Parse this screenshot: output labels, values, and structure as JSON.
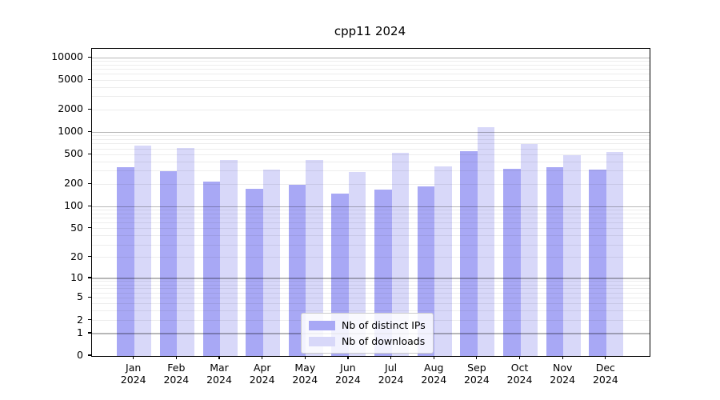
{
  "title": "cpp11 2024",
  "legend": {
    "items": [
      {
        "label": "Nb of distinct IPs",
        "color": "#a8a8f5"
      },
      {
        "label": "Nb of downloads",
        "color": "#d8d8f9"
      }
    ]
  },
  "axes": {
    "y_tick_labels": [
      "0",
      "1",
      "2",
      "5",
      "10",
      "20",
      "50",
      "100",
      "200",
      "500",
      "1000",
      "2000",
      "5000",
      "10000"
    ],
    "x_tick_year": "2024",
    "x_tick_months": [
      "Jan",
      "Feb",
      "Mar",
      "Apr",
      "May",
      "Jun",
      "Jul",
      "Aug",
      "Sep",
      "Oct",
      "Nov",
      "Dec"
    ]
  },
  "chart_data": {
    "type": "bar",
    "title": "cpp11 2024",
    "categories": [
      "Jan 2024",
      "Feb 2024",
      "Mar 2024",
      "Apr 2024",
      "May 2024",
      "Jun 2024",
      "Jul 2024",
      "Aug 2024",
      "Sep 2024",
      "Oct 2024",
      "Nov 2024",
      "Dec 2024"
    ],
    "series": [
      {
        "name": "Nb of distinct IPs",
        "color": "#a8a8f5",
        "values": [
          340,
          300,
          220,
          175,
          198,
          150,
          170,
          187,
          555,
          320,
          340,
          318
        ]
      },
      {
        "name": "Nb of downloads",
        "color": "#d8d8f9",
        "values": [
          660,
          620,
          425,
          315,
          428,
          295,
          525,
          350,
          1170,
          700,
          490,
          540
        ]
      }
    ],
    "xlabel": "",
    "ylabel": "",
    "yscale": "log1p",
    "yticks": [
      0,
      1,
      2,
      5,
      10,
      20,
      50,
      100,
      200,
      500,
      1000,
      2000,
      5000,
      10000
    ],
    "ylim": [
      0,
      13000
    ],
    "grid": "horizontal; faint minor lines at 2-9 per decade, darker lines at powers of 10, drawn over bars",
    "legend_position": "lower center"
  }
}
